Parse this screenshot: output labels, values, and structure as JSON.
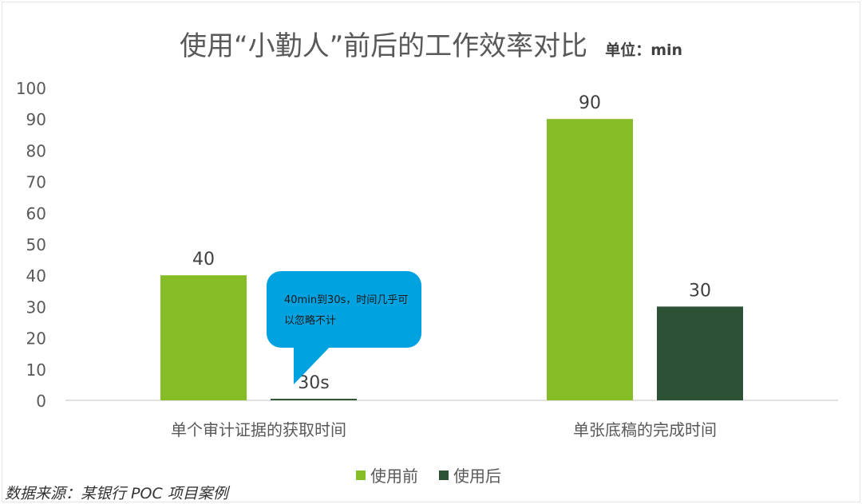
{
  "title": "使用“小勤人”前后的工作效率对比",
  "unit_label": "单位：min",
  "chart_data": {
    "type": "bar",
    "categories": [
      "单个审计证据的获取时间",
      "单张底稿的完成时间"
    ],
    "series": [
      {
        "name": "使用前",
        "values": [
          40,
          90
        ],
        "color": "#86bc25"
      },
      {
        "name": "使用后",
        "values": [
          0.5,
          30
        ],
        "color": "#2d5135"
      }
    ],
    "data_labels": [
      [
        "40",
        "90"
      ],
      [
        "30s",
        "30"
      ]
    ],
    "yticks": [
      "0",
      "10",
      "20",
      "30",
      "40",
      "50",
      "60",
      "70",
      "80",
      "90",
      "100"
    ],
    "ylim": [
      0,
      100
    ],
    "grid": false,
    "legend": "bottom"
  },
  "callout_text": "40min到30s，时间几乎可以忽略不计",
  "source_text": "数据来源：某银行 POC 项目案例"
}
